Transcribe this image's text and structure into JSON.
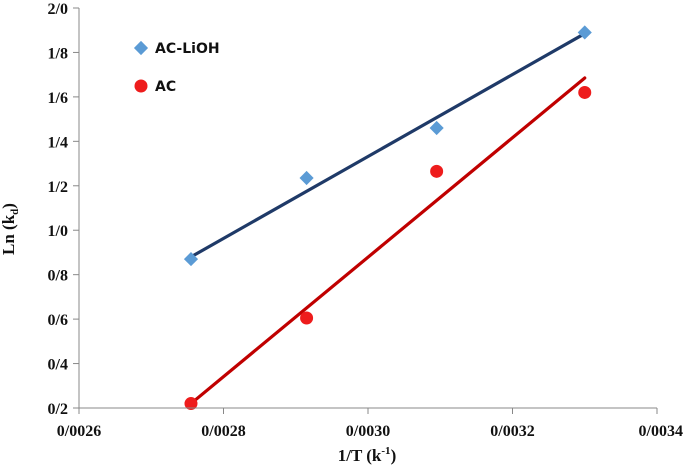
{
  "chart_data": {
    "type": "scatter",
    "title": "",
    "xlabel": "1/T (k",
    "xlabel_sup": "-1",
    "xlabel_end": ")",
    "ylabel": "Ln (k",
    "ylabel_sub": "d",
    "ylabel_end": ")",
    "xlim": [
      0.0026,
      0.0034
    ],
    "ylim": [
      0.2,
      2.0
    ],
    "x_ticks": [
      0.0026,
      0.0028,
      0.003,
      0.0032,
      0.0034
    ],
    "x_tick_labels": [
      "0/0026",
      "0/0028",
      "0/0030",
      "0/0032",
      "0/0034"
    ],
    "y_ticks": [
      0.2,
      0.4,
      0.6,
      0.8,
      1.0,
      1.2,
      1.4,
      1.6,
      1.8,
      2.0
    ],
    "y_tick_labels": [
      "0/2",
      "0/4",
      "0/6",
      "0/8",
      "1/0",
      "1/2",
      "1/4",
      "1/6",
      "1/8",
      "2/0"
    ],
    "grid": false,
    "legend_position": "top-left",
    "series": [
      {
        "name": "AC-LiOH",
        "marker": "diamond",
        "color": "#5b9bd5",
        "line_color": "#1f3a68",
        "x": [
          0.002755,
          0.002915,
          0.003095,
          0.0033
        ],
        "y": [
          0.87,
          1.235,
          1.46,
          1.89
        ],
        "trend": [
          [
            0.002755,
            0.88
          ],
          [
            0.0033,
            1.885
          ]
        ]
      },
      {
        "name": "AC",
        "marker": "circle",
        "color": "#ee1c1c",
        "line_color": "#c00000",
        "x": [
          0.002755,
          0.002915,
          0.003095,
          0.0033
        ],
        "y": [
          0.22,
          0.605,
          1.265,
          1.62
        ],
        "trend": [
          [
            0.002755,
            0.22
          ],
          [
            0.0033,
            1.685
          ]
        ]
      }
    ]
  }
}
